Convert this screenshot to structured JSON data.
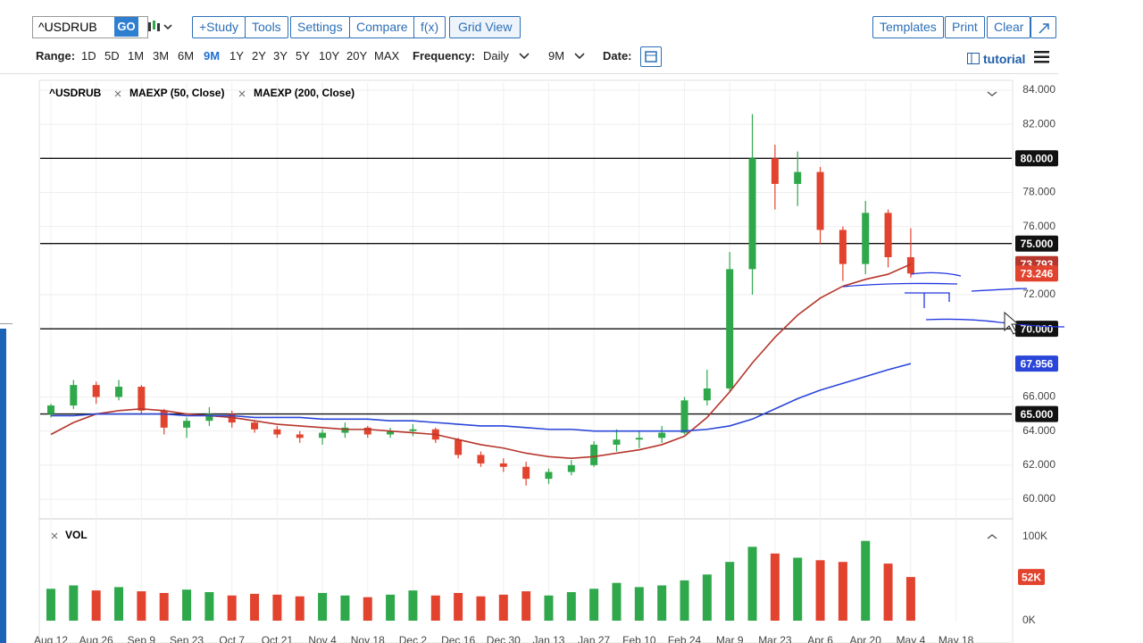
{
  "toolbar": {
    "symbol": "^USDRUB",
    "go": "GO",
    "buttons": [
      "+Study",
      "Tools",
      "Settings",
      "Compare",
      "f(x)",
      "Grid View"
    ],
    "right_buttons": [
      "Templates",
      "Print",
      "Clear"
    ]
  },
  "range_bar": {
    "range_label": "Range:",
    "ranges": [
      "1D",
      "5D",
      "1M",
      "3M",
      "6M",
      "9M",
      "1Y",
      "2Y",
      "3Y",
      "5Y",
      "10Y",
      "20Y",
      "MAX"
    ],
    "selected_range": "9M",
    "frequency_label": "Frequency:",
    "frequency": "Daily",
    "period": "9M",
    "date_label": "Date:",
    "tutorial": "tutorial"
  },
  "chart_data": {
    "type": "candlestick",
    "name": "^USDRUB",
    "up_color": "#2ea84a",
    "down_color": "#e2432e",
    "categories": [
      "Aug 12",
      null,
      "Aug 26",
      null,
      "Sep 9",
      null,
      "Sep 23",
      null,
      "Oct 7",
      null,
      "Oct 21",
      null,
      "Nov 4",
      null,
      "Nov 18",
      null,
      "Dec 2",
      null,
      "Dec 16",
      null,
      "Dec 30",
      null,
      "Jan 13",
      null,
      "Jan 27",
      null,
      "Feb 10",
      null,
      "Feb 24",
      null,
      "Mar 9",
      null,
      "Mar 23",
      null,
      "Apr 6",
      null,
      "Apr 20",
      null,
      "May 4",
      null,
      "May 18"
    ],
    "open": [
      65.0,
      65.5,
      66.7,
      66.0,
      66.6,
      65.2,
      64.2,
      64.6,
      65.0,
      64.5,
      64.1,
      63.8,
      63.6,
      63.9,
      64.2,
      63.8,
      64.0,
      64.1,
      63.5,
      62.6,
      62.1,
      61.9,
      61.2,
      61.6,
      62.0,
      63.2,
      63.5,
      63.6,
      63.9,
      65.8,
      66.5,
      73.5,
      80.0,
      78.5,
      79.2,
      75.8,
      73.8,
      76.8,
      74.2,
      null,
      null
    ],
    "high": [
      65.6,
      67.0,
      66.9,
      67.0,
      66.7,
      65.3,
      64.8,
      65.4,
      65.2,
      64.6,
      64.3,
      64.0,
      64.1,
      64.5,
      64.3,
      64.2,
      64.4,
      64.2,
      63.6,
      62.8,
      62.4,
      62.2,
      61.8,
      62.3,
      63.4,
      64.1,
      64.0,
      64.3,
      66.0,
      67.6,
      74.5,
      82.6,
      80.8,
      80.4,
      79.5,
      76.0,
      77.5,
      77.0,
      75.9,
      null,
      null
    ],
    "low": [
      64.8,
      65.3,
      65.6,
      65.8,
      65.0,
      63.8,
      63.6,
      64.3,
      64.2,
      63.9,
      63.6,
      63.3,
      63.2,
      63.6,
      63.6,
      63.6,
      63.7,
      63.3,
      62.4,
      61.9,
      61.6,
      60.8,
      60.9,
      61.4,
      61.9,
      62.8,
      63.0,
      63.3,
      63.8,
      65.5,
      66.3,
      72.0,
      77.0,
      77.2,
      75.0,
      72.8,
      73.2,
      73.6,
      73.0,
      null,
      null
    ],
    "close": [
      65.5,
      66.7,
      66.0,
      66.6,
      65.2,
      64.2,
      64.6,
      65.0,
      64.5,
      64.1,
      63.8,
      63.6,
      63.9,
      64.2,
      63.8,
      64.0,
      64.1,
      63.5,
      62.6,
      62.1,
      61.9,
      61.2,
      61.6,
      62.0,
      63.2,
      63.5,
      63.6,
      63.9,
      65.8,
      66.5,
      73.5,
      80.0,
      78.5,
      79.2,
      75.8,
      73.8,
      76.8,
      74.2,
      73.246,
      null,
      null
    ],
    "series": [
      {
        "name": "MAEXP (50, Close)",
        "color": "#b5362c",
        "values": [
          63.8,
          64.5,
          65.0,
          65.2,
          65.3,
          65.2,
          65.0,
          64.9,
          64.8,
          64.6,
          64.4,
          64.3,
          64.2,
          64.1,
          64.1,
          64.0,
          63.9,
          63.8,
          63.5,
          63.2,
          63.0,
          62.7,
          62.5,
          62.4,
          62.5,
          62.7,
          62.9,
          63.2,
          63.7,
          64.8,
          66.3,
          68.0,
          69.5,
          70.8,
          71.8,
          72.5,
          72.9,
          73.2,
          73.793,
          null,
          null
        ]
      },
      {
        "name": "MAEXP (200, Close)",
        "color": "#2a46d8",
        "values": [
          64.9,
          64.9,
          65.0,
          65.0,
          65.0,
          65.0,
          64.9,
          64.9,
          64.9,
          64.8,
          64.8,
          64.8,
          64.7,
          64.7,
          64.7,
          64.6,
          64.6,
          64.5,
          64.4,
          64.3,
          64.3,
          64.2,
          64.1,
          64.1,
          64.0,
          64.0,
          64.0,
          64.0,
          64.0,
          64.1,
          64.3,
          64.7,
          65.3,
          65.9,
          66.4,
          66.8,
          67.2,
          67.6,
          67.956,
          null,
          null
        ]
      }
    ],
    "ylim": [
      58.9,
      84.47
    ],
    "yticks": [
      {
        "value": 84,
        "label": "84.000"
      },
      {
        "value": 82,
        "label": "82.000"
      },
      {
        "value": 78,
        "label": "78.000"
      },
      {
        "value": 76,
        "label": "76.000"
      },
      {
        "value": 72,
        "label": "72.000"
      },
      {
        "value": 66,
        "label": "66.000"
      },
      {
        "value": 64,
        "label": "64.000"
      },
      {
        "value": 62,
        "label": "62.000"
      },
      {
        "value": 60,
        "label": "60.000"
      }
    ],
    "grid": true,
    "hlines": [
      {
        "value": 80,
        "label": "80.000"
      },
      {
        "value": 75,
        "label": "75.000"
      },
      {
        "value": 70,
        "label": "70.000"
      },
      {
        "value": 65,
        "label": "65.000"
      }
    ],
    "price_tags": [
      {
        "value": 73.793,
        "label": "73.793",
        "color": "#b5362c"
      },
      {
        "value": 73.246,
        "label": "73.246",
        "color": "#e2432e"
      },
      {
        "value": 67.956,
        "label": "67.956",
        "color": "#2a46d8"
      }
    ],
    "volume": {
      "name": "VOL",
      "values": [
        38000,
        42000,
        36000,
        40000,
        35000,
        33000,
        37000,
        34000,
        30000,
        32000,
        31000,
        29000,
        33000,
        30000,
        28000,
        31000,
        36000,
        30000,
        33000,
        29000,
        31000,
        35000,
        30000,
        34000,
        38000,
        45000,
        40000,
        42000,
        48000,
        55000,
        70000,
        88000,
        80000,
        75000,
        72000,
        70000,
        95000,
        68000,
        52000,
        null,
        null
      ],
      "ylim": [
        0,
        111700
      ],
      "yticks": [
        {
          "value": 0,
          "label": "0K"
        },
        {
          "value": 100000,
          "label": "100K"
        }
      ],
      "tag": {
        "value": 52000,
        "label": "52K",
        "color": "#e2432e"
      }
    }
  }
}
